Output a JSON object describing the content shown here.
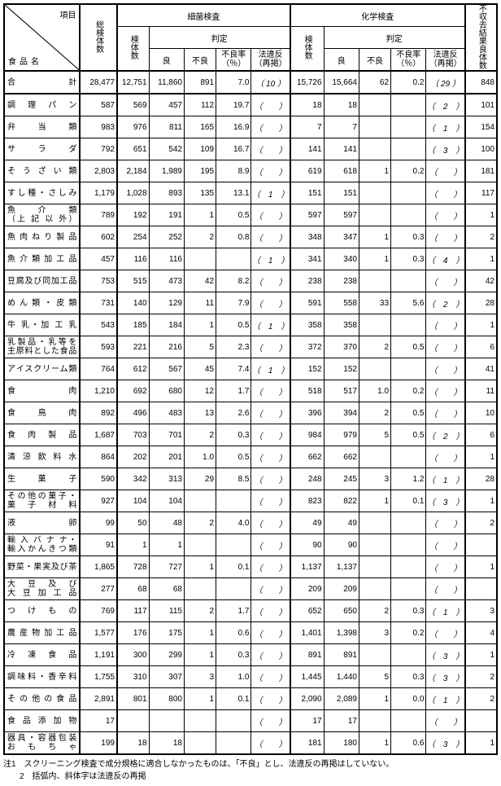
{
  "header": {
    "corner_top": "項目",
    "corner_bottom": "食品名",
    "col_total": "総検体数",
    "grp_bact": "細菌検査",
    "grp_chem": "化学検査",
    "col_unfit": "不収去結果良体数",
    "sub_n": "検体数",
    "sub_judge": "判定",
    "j_good": "良",
    "j_bad": "不良",
    "j_rate": "不良率（％）",
    "j_law": "法違反（再掲）"
  },
  "rows": [
    {
      "name": "合　　　　　計",
      "t": "28,477",
      "bn": "12,751",
      "bg": "11,860",
      "bb": "891",
      "br": "7.0",
      "bl": "（ 10 ）",
      "cn": "15,726",
      "cg": "15,664",
      "cb": "62",
      "cr": "0.2",
      "cl": "（ 29 ）",
      "u": "848",
      "sum": true
    },
    {
      "name": "調　理　パ　ン",
      "t": "587",
      "bn": "569",
      "bg": "457",
      "bb": "112",
      "br": "19.7",
      "bl": "（　　）",
      "cn": "18",
      "cg": "18",
      "cb": "",
      "cr": "",
      "cl": "（　2　）",
      "u": "101"
    },
    {
      "name": "弁　　当　　類",
      "t": "983",
      "bn": "976",
      "bg": "811",
      "bb": "165",
      "br": "16.9",
      "bl": "（　　）",
      "cn": "7",
      "cg": "7",
      "cb": "",
      "cr": "",
      "cl": "（　1　）",
      "u": "154"
    },
    {
      "name": "サ　　ラ　　ダ",
      "t": "792",
      "bn": "651",
      "bg": "542",
      "bb": "109",
      "br": "16.7",
      "bl": "（　　）",
      "cn": "141",
      "cg": "141",
      "cb": "",
      "cr": "",
      "cl": "（　3　）",
      "u": "100"
    },
    {
      "name": "そ う ざ い 類",
      "t": "2,803",
      "bn": "2,184",
      "bg": "1,989",
      "bb": "195",
      "br": "8.9",
      "bl": "（　　）",
      "cn": "619",
      "cg": "618",
      "cb": "1",
      "cr": "0.2",
      "cl": "（　　）",
      "u": "181"
    },
    {
      "name": "すし種・さしみ",
      "t": "1,179",
      "bn": "1,028",
      "bg": "893",
      "bb": "135",
      "br": "13.1",
      "bl": "（　1　）",
      "cn": "151",
      "cg": "151",
      "cb": "",
      "cr": "",
      "cl": "（　　）",
      "u": "117"
    },
    {
      "name": "魚　　介　　類<br>（上 記 以 外）",
      "t": "789",
      "bn": "192",
      "bg": "191",
      "bb": "1",
      "br": "0.5",
      "bl": "（　　）",
      "cn": "597",
      "cg": "597",
      "cb": "",
      "cr": "",
      "cl": "（　　）",
      "u": "1"
    },
    {
      "name": "魚肉ねり製品",
      "t": "602",
      "bn": "254",
      "bg": "252",
      "bb": "2",
      "br": "0.8",
      "bl": "（　　）",
      "cn": "348",
      "cg": "347",
      "cb": "1",
      "cr": "0.3",
      "cl": "（　　）",
      "u": "2"
    },
    {
      "name": "魚 介 類 加 工 品",
      "t": "457",
      "bn": "116",
      "bg": "116",
      "bb": "",
      "br": "",
      "bl": "（　1　）",
      "cn": "341",
      "cg": "340",
      "cb": "1",
      "cr": "0.3",
      "cl": "（　4　）",
      "u": "1"
    },
    {
      "name": "豆腐及び同加工品",
      "t": "753",
      "bn": "515",
      "bg": "473",
      "bb": "42",
      "br": "8.2",
      "bl": "（　　）",
      "cn": "238",
      "cg": "238",
      "cb": "",
      "cr": "",
      "cl": "（　　）",
      "u": "42"
    },
    {
      "name": "めん類・皮類",
      "t": "731",
      "bn": "140",
      "bg": "129",
      "bb": "11",
      "br": "7.9",
      "bl": "（　　）",
      "cn": "591",
      "cg": "558",
      "cb": "33",
      "cr": "5.6",
      "cl": "（　2　）",
      "u": "28"
    },
    {
      "name": "牛 乳・加 工 乳",
      "t": "543",
      "bn": "185",
      "bg": "184",
      "bb": "1",
      "br": "0.5",
      "bl": "（　1　）",
      "cn": "358",
      "cg": "358",
      "cb": "",
      "cr": "",
      "cl": "（　　）",
      "u": "1"
    },
    {
      "name": "乳製品・乳等を<br>主原料とした食品",
      "t": "593",
      "bn": "221",
      "bg": "216",
      "bb": "5",
      "br": "2.3",
      "bl": "（　　）",
      "cn": "372",
      "cg": "370",
      "cb": "2",
      "cr": "0.5",
      "cl": "（　　）",
      "u": "6"
    },
    {
      "name": "アイスクリーム類",
      "t": "764",
      "bn": "612",
      "bg": "567",
      "bb": "45",
      "br": "7.4",
      "bl": "（　1　）",
      "cn": "152",
      "cg": "152",
      "cb": "",
      "cr": "",
      "cl": "（　　）",
      "u": "41"
    },
    {
      "name": "食　　　　　肉",
      "t": "1,210",
      "bn": "692",
      "bg": "680",
      "bb": "12",
      "br": "1.7",
      "bl": "（　　）",
      "cn": "518",
      "cg": "517",
      "cb": "1.0",
      "cr": "0.2",
      "cl": "（　　）",
      "u": "11"
    },
    {
      "name": "食　　鳥　　肉",
      "t": "892",
      "bn": "496",
      "bg": "483",
      "bb": "13",
      "br": "2.6",
      "bl": "（　　）",
      "cn": "396",
      "cg": "394",
      "cb": "2",
      "cr": "0.5",
      "cl": "（　　）",
      "u": "10"
    },
    {
      "name": "食　肉　製　品",
      "t": "1,687",
      "bn": "703",
      "bg": "701",
      "bb": "2",
      "br": "0.3",
      "bl": "（　　）",
      "cn": "984",
      "cg": "979",
      "cb": "5",
      "cr": "0.5",
      "cl": "（　2　）",
      "u": "6"
    },
    {
      "name": "清 涼 飲 料 水",
      "t": "864",
      "bn": "202",
      "bg": "201",
      "bb": "1.0",
      "br": "0.5",
      "bl": "（　　）",
      "cn": "662",
      "cg": "662",
      "cb": "",
      "cr": "",
      "cl": "（　　）",
      "u": "1"
    },
    {
      "name": "生　　菓　　子",
      "t": "590",
      "bn": "342",
      "bg": "313",
      "bb": "29",
      "br": "8.5",
      "bl": "（　　）",
      "cn": "248",
      "cg": "245",
      "cb": "3",
      "cr": "1.2",
      "cl": "（　1　）",
      "u": "28"
    },
    {
      "name": "その他の菓子・<br>菓 子 材 料",
      "t": "927",
      "bn": "104",
      "bg": "104",
      "bb": "",
      "br": "",
      "bl": "（　　）",
      "cn": "823",
      "cg": "822",
      "cb": "1",
      "cr": "0.1",
      "cl": "（　3　）",
      "u": "1"
    },
    {
      "name": "液　　　　　卵",
      "t": "99",
      "bn": "50",
      "bg": "48",
      "bb": "2",
      "br": "4.0",
      "bl": "（　　）",
      "cn": "49",
      "cg": "49",
      "cb": "",
      "cr": "",
      "cl": "（　　）",
      "u": "2"
    },
    {
      "name": "輸 入 バ ナ ナ・<br>輸入かんきつ類",
      "t": "91",
      "bn": "1",
      "bg": "1",
      "bb": "",
      "br": "",
      "bl": "（　　）",
      "cn": "90",
      "cg": "90",
      "cb": "",
      "cr": "",
      "cl": "（　　）",
      "u": ""
    },
    {
      "name": "野菜・果実及び茶",
      "t": "1,865",
      "bn": "728",
      "bg": "727",
      "bb": "1",
      "br": "0.1",
      "bl": "（　　）",
      "cn": "1,137",
      "cg": "1,137",
      "cb": "",
      "cr": "",
      "cl": "（　　）",
      "u": "1"
    },
    {
      "name": "大 豆 及 び<br>大 豆 加 工 品",
      "t": "277",
      "bn": "68",
      "bg": "68",
      "bb": "",
      "br": "",
      "bl": "（　　）",
      "cn": "209",
      "cg": "209",
      "cb": "",
      "cr": "",
      "cl": "（　　）",
      "u": ""
    },
    {
      "name": "つ　け　も　の",
      "t": "769",
      "bn": "117",
      "bg": "115",
      "bb": "2",
      "br": "1.7",
      "bl": "（　　）",
      "cn": "652",
      "cg": "650",
      "cb": "2",
      "cr": "0.3",
      "cl": "（　1　）",
      "u": "3"
    },
    {
      "name": "農 産 物 加 工 品",
      "t": "1,577",
      "bn": "176",
      "bg": "175",
      "bb": "1",
      "br": "0.6",
      "bl": "（　　）",
      "cn": "1,401",
      "cg": "1,398",
      "cb": "3",
      "cr": "0.2",
      "cl": "（　　）",
      "u": "4"
    },
    {
      "name": "冷　凍　食　品",
      "t": "1,191",
      "bn": "300",
      "bg": "299",
      "bb": "1",
      "br": "0.3",
      "bl": "（　　）",
      "cn": "891",
      "cg": "891",
      "cb": "",
      "cr": "",
      "cl": "（　3　）",
      "u": "1"
    },
    {
      "name": "調味料・香辛料",
      "t": "1,755",
      "bn": "310",
      "bg": "307",
      "bb": "3",
      "br": "1.0",
      "bl": "（　　）",
      "cn": "1,445",
      "cg": "1,440",
      "cb": "5",
      "cr": "0.3",
      "cl": "（　3　）",
      "u": "2"
    },
    {
      "name": "その他の食品",
      "t": "2,891",
      "bn": "801",
      "bg": "800",
      "bb": "1",
      "br": "0.1",
      "bl": "（　　）",
      "cn": "2,090",
      "cg": "2,089",
      "cb": "1",
      "cr": "0.0",
      "cl": "（　1　）",
      "u": "2"
    },
    {
      "name": "食 品 添 加 物",
      "t": "17",
      "bn": "",
      "bg": "",
      "bb": "",
      "br": "",
      "bl": "（　　）",
      "cn": "17",
      "cg": "17",
      "cb": "",
      "cr": "",
      "cl": "（　　）",
      "u": ""
    },
    {
      "name": "器具・容器包装<br>お　も　ち　ゃ",
      "t": "199",
      "bn": "18",
      "bg": "18",
      "bb": "",
      "br": "",
      "bl": "（　　）",
      "cn": "181",
      "cg": "180",
      "cb": "1",
      "cr": "0.6",
      "cl": "（　3　）",
      "u": "1"
    }
  ],
  "notes": {
    "n1": "注1　スクリーニング検査で成分規格に適合しなかったものは、「不良」とし、法違反の再掲はしていない。",
    "n2": "　　2　括弧内、斜体字は法違反の再掲"
  }
}
